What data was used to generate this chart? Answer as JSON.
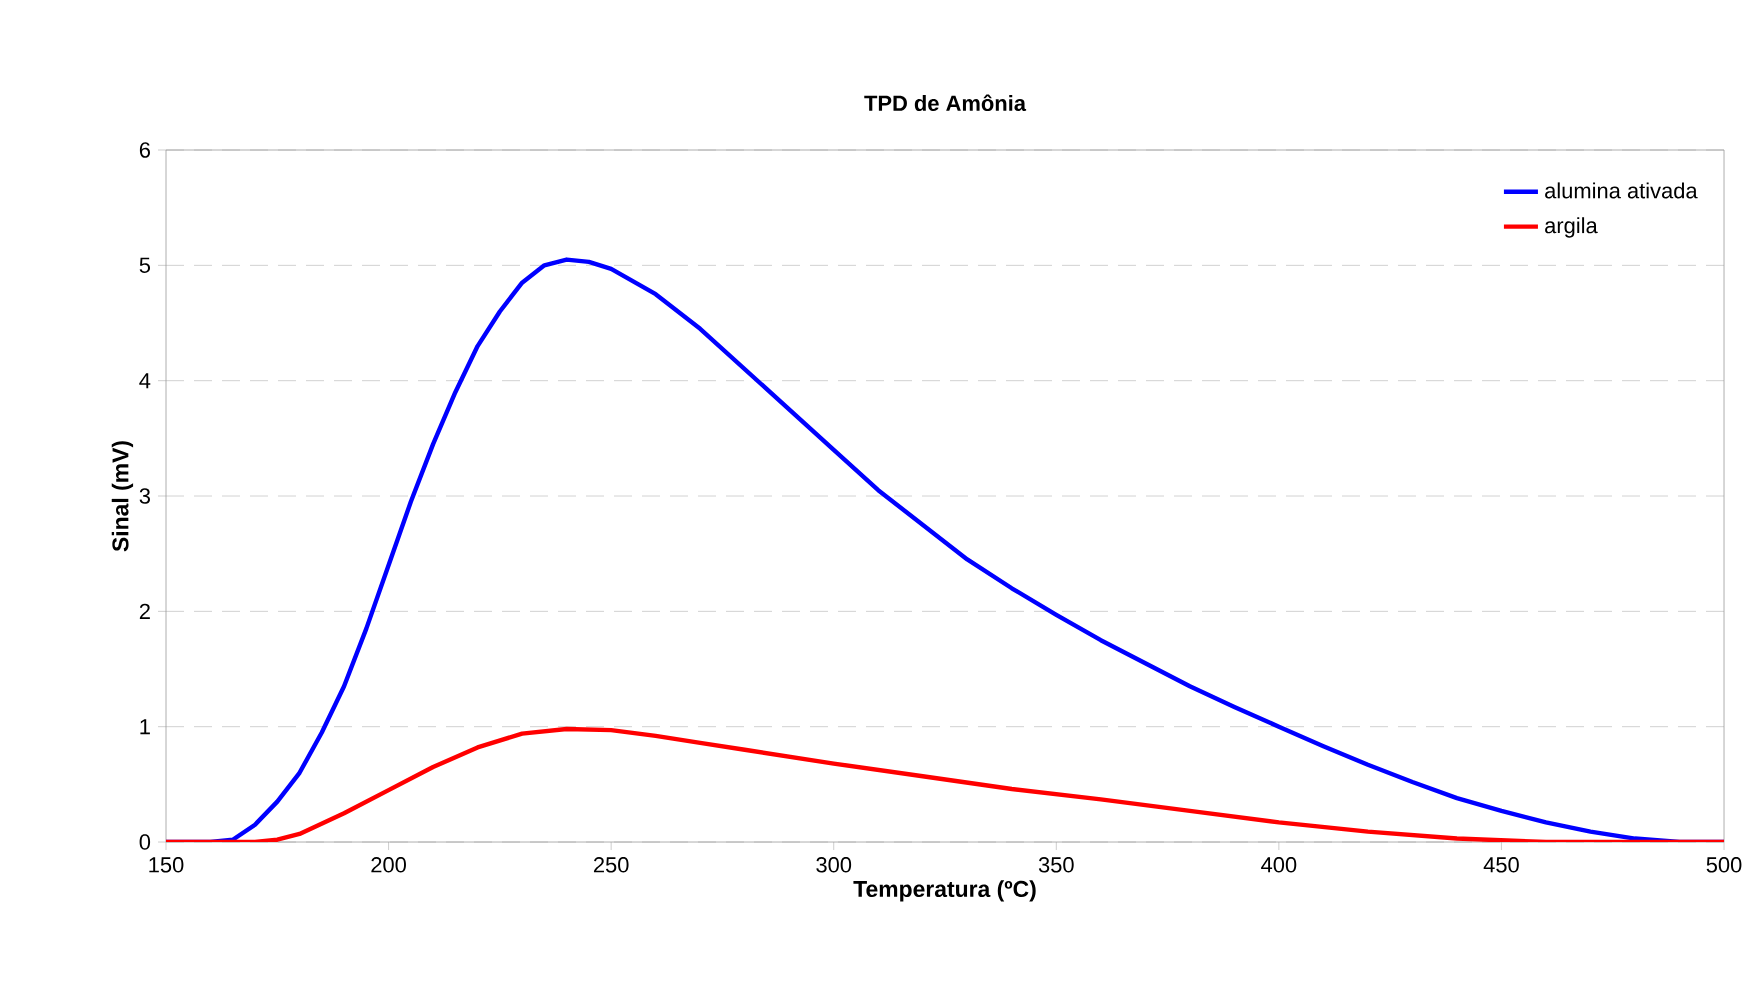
{
  "chart_data": {
    "type": "line",
    "title": "TPD de Amônia",
    "xlabel": "Temperatura (ºC)",
    "ylabel": "Sinal (mV)",
    "xlim": [
      150,
      500
    ],
    "xticks": [
      150,
      200,
      250,
      300,
      350,
      400,
      450,
      500
    ],
    "ylim": [
      0,
      6
    ],
    "yticks": [
      0,
      1,
      2,
      3,
      4,
      5,
      6
    ],
    "grid": "y",
    "legend": "top right",
    "marker": "none",
    "line_style": "solid",
    "series": [
      {
        "name": "alumina ativada",
        "color": "#0000ff",
        "x": [
          150,
          160,
          165,
          170,
          175,
          180,
          185,
          190,
          195,
          200,
          205,
          210,
          215,
          220,
          225,
          230,
          235,
          240,
          245,
          250,
          260,
          270,
          280,
          290,
          300,
          310,
          320,
          330,
          340,
          350,
          360,
          370,
          380,
          390,
          400,
          410,
          420,
          430,
          440,
          450,
          460,
          470,
          480,
          490,
          500
        ],
        "values": [
          0,
          0,
          0.02,
          0.15,
          0.35,
          0.6,
          0.95,
          1.35,
          1.85,
          2.4,
          2.95,
          3.45,
          3.9,
          4.3,
          4.6,
          4.85,
          5.0,
          5.05,
          5.03,
          4.97,
          4.75,
          4.45,
          4.1,
          3.75,
          3.4,
          3.05,
          2.75,
          2.45,
          2.2,
          1.97,
          1.75,
          1.55,
          1.35,
          1.17,
          1.0,
          0.83,
          0.67,
          0.52,
          0.38,
          0.27,
          0.17,
          0.09,
          0.03,
          0,
          0
        ]
      },
      {
        "name": "argila",
        "color": "#ff0000",
        "x": [
          150,
          170,
          175,
          180,
          190,
          200,
          210,
          220,
          230,
          240,
          250,
          260,
          270,
          280,
          290,
          300,
          320,
          340,
          360,
          380,
          400,
          420,
          440,
          460,
          500
        ],
        "values": [
          0,
          0,
          0.02,
          0.07,
          0.25,
          0.45,
          0.65,
          0.82,
          0.94,
          0.98,
          0.97,
          0.92,
          0.86,
          0.8,
          0.74,
          0.68,
          0.57,
          0.46,
          0.37,
          0.27,
          0.17,
          0.09,
          0.03,
          0,
          0
        ]
      }
    ]
  }
}
